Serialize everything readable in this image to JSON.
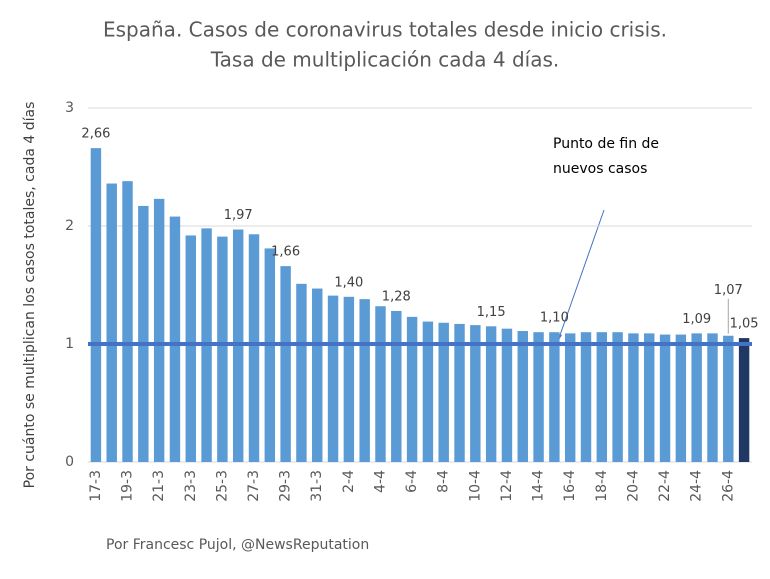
{
  "chart_data": {
    "type": "bar",
    "title": [
      "España. Casos de coronavirus totales desde inicio crisis.",
      "Tasa de multiplicación cada 4 días."
    ],
    "y_label": "Por cuánto se multiplican los casos totales, cada 4 días",
    "footer": "Por Francesc Pujol, @NewsReputation",
    "categories": [
      "17-3",
      null,
      "19-3",
      null,
      "21-3",
      null,
      "23-3",
      null,
      "25-3",
      null,
      "27-3",
      null,
      "29-3",
      null,
      "31-3",
      null,
      "2-4",
      null,
      "4-4",
      null,
      "6-4",
      null,
      "8-4",
      null,
      "10-4",
      null,
      "12-4",
      null,
      "14-4",
      null,
      "16-4",
      null,
      "18-4",
      null,
      "20-4",
      null,
      "22-4",
      null,
      "24-4",
      null,
      "26-4",
      null
    ],
    "values": [
      2.66,
      2.36,
      2.38,
      2.17,
      2.23,
      2.08,
      1.92,
      1.98,
      1.91,
      1.97,
      1.93,
      1.81,
      1.66,
      1.51,
      1.47,
      1.41,
      1.4,
      1.38,
      1.32,
      1.28,
      1.23,
      1.19,
      1.18,
      1.17,
      1.16,
      1.15,
      1.13,
      1.11,
      1.1,
      1.1,
      1.09,
      1.1,
      1.1,
      1.1,
      1.09,
      1.09,
      1.08,
      1.08,
      1.09,
      1.09,
      1.07,
      1.05
    ],
    "value_labels": [
      "2,66",
      null,
      null,
      null,
      null,
      null,
      null,
      null,
      null,
      "1,97",
      null,
      null,
      "1,66",
      null,
      null,
      null,
      "1,40",
      null,
      null,
      "1,28",
      null,
      null,
      null,
      null,
      null,
      "1,15",
      null,
      null,
      null,
      "1,10",
      null,
      null,
      null,
      null,
      null,
      null,
      null,
      null,
      "1,09",
      null,
      "1,07",
      "1,05"
    ],
    "colors": [
      "#5b9bd5",
      "#5b9bd5",
      "#5b9bd5",
      "#5b9bd5",
      "#5b9bd5",
      "#5b9bd5",
      "#5b9bd5",
      "#5b9bd5",
      "#5b9bd5",
      "#5b9bd5",
      "#5b9bd5",
      "#5b9bd5",
      "#5b9bd5",
      "#5b9bd5",
      "#5b9bd5",
      "#5b9bd5",
      "#5b9bd5",
      "#5b9bd5",
      "#5b9bd5",
      "#5b9bd5",
      "#5b9bd5",
      "#5b9bd5",
      "#5b9bd5",
      "#5b9bd5",
      "#5b9bd5",
      "#5b9bd5",
      "#5b9bd5",
      "#5b9bd5",
      "#5b9bd5",
      "#5b9bd5",
      "#5b9bd5",
      "#5b9bd5",
      "#5b9bd5",
      "#5b9bd5",
      "#5b9bd5",
      "#5b9bd5",
      "#5b9bd5",
      "#5b9bd5",
      "#5b9bd5",
      "#5b9bd5",
      "#5b9bd5",
      "#1f3864"
    ],
    "ylim": [
      0,
      3
    ],
    "yticks": [
      0,
      1,
      2,
      3
    ],
    "grid": true,
    "reference_line": {
      "value": 1,
      "color": "#4472c4"
    },
    "annotation": [
      "Punto de fin de",
      "nuevos casos"
    ]
  }
}
